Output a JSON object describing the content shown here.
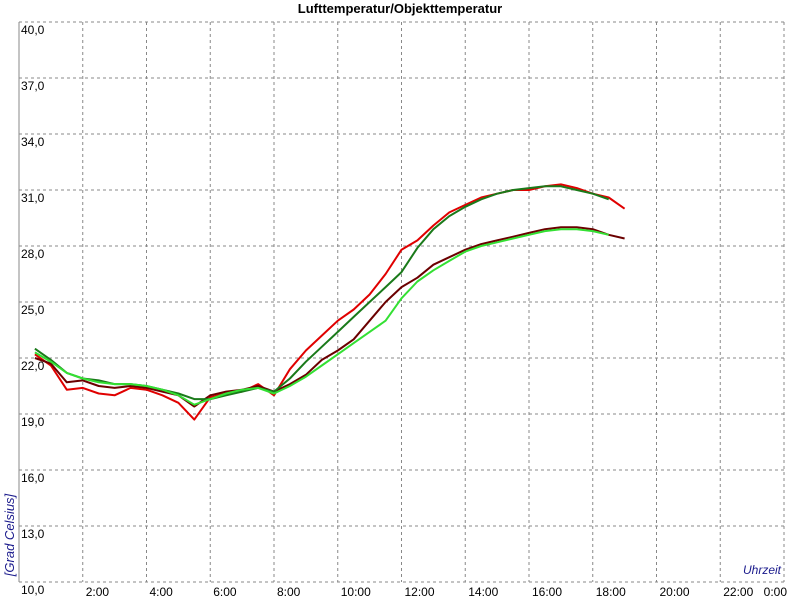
{
  "chart_data": {
    "type": "line",
    "title": "Lufttemperatur/Objekttemperatur",
    "y_label": "[Grad Celsius]",
    "x_label": "Uhrzeit",
    "x": [
      0.5,
      1,
      1.5,
      2,
      2.5,
      3,
      3.5,
      4,
      4.5,
      5,
      5.5,
      6,
      6.5,
      7,
      7.5,
      8,
      8.5,
      9,
      9.5,
      10,
      10.5,
      11,
      11.5,
      12,
      12.5,
      13,
      13.5,
      14,
      14.5,
      15,
      15.5,
      16,
      16.5,
      17,
      17.5,
      18,
      18.5,
      19
    ],
    "series": [
      {
        "color": "#e00000",
        "values": [
          22.2,
          21.6,
          20.3,
          20.4,
          20.1,
          20.0,
          20.4,
          20.3,
          20.0,
          19.6,
          18.7,
          19.9,
          20.1,
          20.2,
          20.6,
          20.0,
          21.4,
          22.4,
          23.2,
          24.0,
          24.6,
          25.4,
          26.5,
          27.8,
          28.3,
          29.1,
          29.8,
          30.2,
          30.6,
          30.8,
          31.0,
          31.0,
          31.2,
          31.3,
          31.1,
          30.8,
          30.6,
          30.0
        ]
      },
      {
        "color": "#6b0000",
        "values": [
          22.0,
          21.7,
          20.7,
          20.8,
          20.5,
          20.4,
          20.5,
          20.4,
          20.2,
          20.0,
          19.4,
          20.0,
          20.2,
          20.3,
          20.5,
          20.2,
          20.6,
          21.1,
          21.9,
          22.4,
          23.0,
          24.0,
          25.0,
          25.8,
          26.3,
          27.0,
          27.4,
          27.8,
          28.1,
          28.3,
          28.5,
          28.7,
          28.9,
          29.0,
          29.0,
          28.9,
          28.6,
          28.4
        ]
      },
      {
        "color": "#1a7a1a",
        "values": [
          22.5,
          21.9,
          21.2,
          20.9,
          20.8,
          20.6,
          20.6,
          20.5,
          20.3,
          20.1,
          19.8,
          19.8,
          20.0,
          20.2,
          20.4,
          20.2,
          20.9,
          21.8,
          22.6,
          23.4,
          24.2,
          25.0,
          25.8,
          26.6,
          27.9,
          28.9,
          29.6,
          30.1,
          30.5,
          30.8,
          31.0,
          31.1,
          31.2,
          31.2,
          31.0,
          30.8,
          30.5,
          null
        ]
      },
      {
        "color": "#33e033",
        "values": [
          22.3,
          21.8,
          21.2,
          20.9,
          20.7,
          20.6,
          20.6,
          20.5,
          20.3,
          20.0,
          19.5,
          19.8,
          20.1,
          20.3,
          20.4,
          20.1,
          20.5,
          21.0,
          21.6,
          22.2,
          22.8,
          23.4,
          24.0,
          25.2,
          26.1,
          26.7,
          27.2,
          27.7,
          28.0,
          28.2,
          28.4,
          28.6,
          28.8,
          28.9,
          28.9,
          28.8,
          28.6,
          null
        ]
      }
    ],
    "xlim": [
      0,
      24
    ],
    "xticks": [
      {
        "value": 2,
        "label": "2:00"
      },
      {
        "value": 4,
        "label": "4:00"
      },
      {
        "value": 6,
        "label": "6:00"
      },
      {
        "value": 8,
        "label": "8:00"
      },
      {
        "value": 10,
        "label": "10:00"
      },
      {
        "value": 12,
        "label": "12:00"
      },
      {
        "value": 14,
        "label": "14:00"
      },
      {
        "value": 16,
        "label": "16:00"
      },
      {
        "value": 18,
        "label": "18:00"
      },
      {
        "value": 20,
        "label": "20:00"
      },
      {
        "value": 22,
        "label": "22:00"
      },
      {
        "value": 24,
        "label": "0:00"
      }
    ],
    "ylim": [
      10,
      40
    ],
    "yticks": [
      {
        "value": 10,
        "label": "10,0"
      },
      {
        "value": 13,
        "label": "13,0"
      },
      {
        "value": 16,
        "label": "16,0"
      },
      {
        "value": 19,
        "label": "19,0"
      },
      {
        "value": 22,
        "label": "22,0"
      },
      {
        "value": 25,
        "label": "25,0"
      },
      {
        "value": 28,
        "label": "28,0"
      },
      {
        "value": 31,
        "label": "31,0"
      },
      {
        "value": 34,
        "label": "34,0"
      },
      {
        "value": 37,
        "label": "37,0"
      },
      {
        "value": 40,
        "label": "40,0"
      }
    ],
    "grid": true
  }
}
